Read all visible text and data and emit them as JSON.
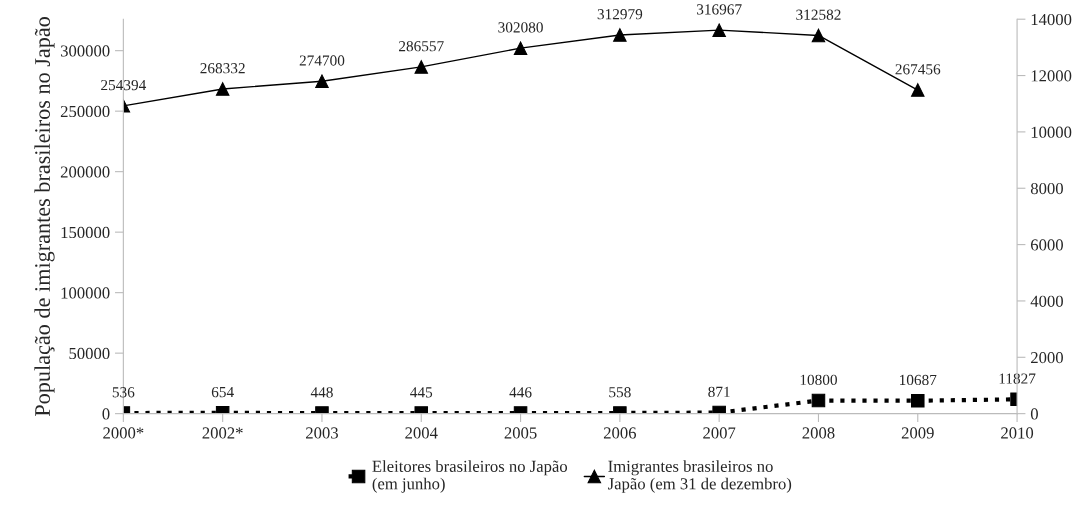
{
  "chart_data": {
    "type": "line",
    "ylabel": "População de imigrantes brasileiros no Japão",
    "categories": [
      "2000*",
      "2002*",
      "2003",
      "2004",
      "2005",
      "2006",
      "2007",
      "2008",
      "2009",
      "2010"
    ],
    "series": [
      {
        "name": "Eleitores brasileiros no Japão\n(em junho)",
        "color": "#000000",
        "marker": "square",
        "line_style": "dotted",
        "values": [
          536,
          654,
          448,
          445,
          446,
          558,
          871,
          10800,
          10687,
          11827
        ]
      },
      {
        "name": "Imigrantes brasileiros no\nJapão (em 31 de dezembro)",
        "color": "#000000",
        "marker": "triangle",
        "line_style": "solid",
        "values": [
          254394,
          268332,
          274700,
          286557,
          302080,
          312979,
          316967,
          312582,
          267456,
          null
        ]
      }
    ],
    "ylim": [
      0,
      326000
    ],
    "yticks": [
      0,
      50000,
      100000,
      150000,
      200000,
      250000,
      300000
    ],
    "y2lim": [
      0,
      14000
    ],
    "y2ticks": [
      0,
      2000,
      4000,
      6000,
      8000,
      10000,
      12000,
      14000
    ],
    "data_labels": true,
    "legend": "bottom",
    "grid": false
  }
}
